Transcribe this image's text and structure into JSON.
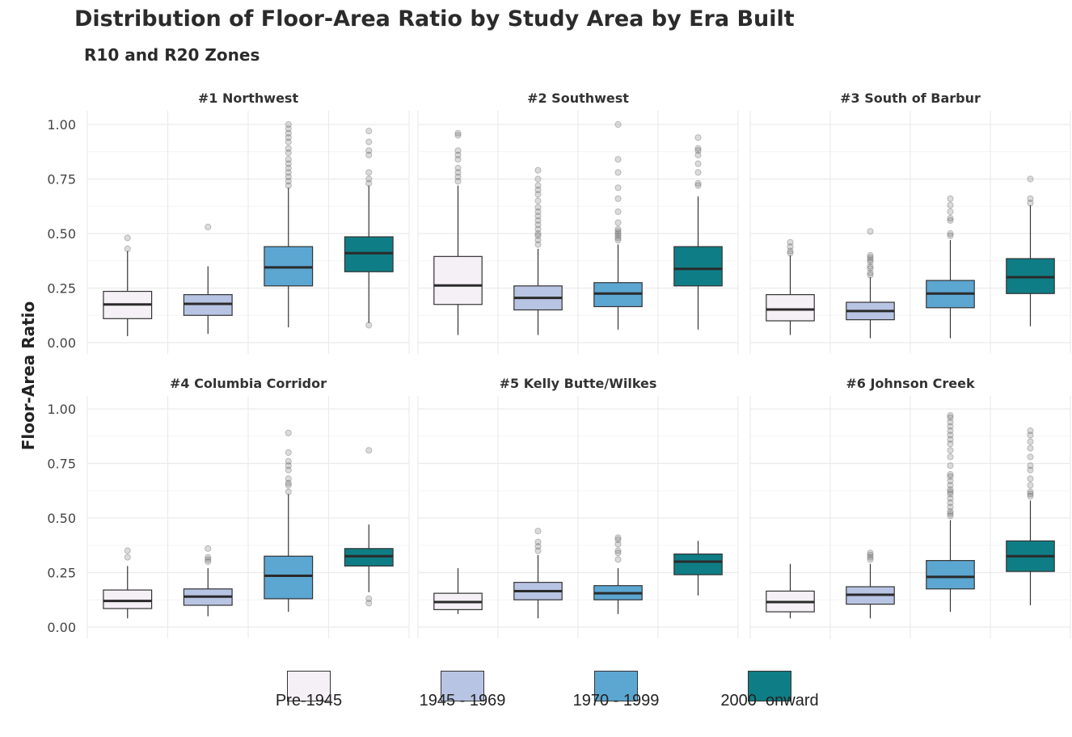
{
  "title": "Distribution of Floor-Area Ratio by Study Area by Era Built",
  "subtitle": "R10 and R20 Zones",
  "chart_data": {
    "type": "boxplot",
    "ylabel": "Floor-Area Ratio",
    "ylim": [
      0,
      1
    ],
    "yticks": [
      "0.00",
      "0.25",
      "0.50",
      "0.75",
      "1.00"
    ],
    "grid": true,
    "legend_position": "bottom",
    "categories": [
      "Pre-1945",
      "1945 - 1969",
      "1970 - 1999",
      "2000  onward"
    ],
    "colors": [
      "#f5eff6",
      "#b8c4e3",
      "#5ca6d2",
      "#0f7d85"
    ],
    "panels": [
      {
        "name": "#1 Northwest",
        "boxes": [
          {
            "whisker_low": 0.03,
            "q1": 0.11,
            "median": 0.175,
            "q3": 0.235,
            "whisker_high": 0.42,
            "outliers": [
              0.43,
              0.48
            ]
          },
          {
            "whisker_low": 0.04,
            "q1": 0.125,
            "median": 0.178,
            "q3": 0.22,
            "whisker_high": 0.35,
            "outliers": [
              0.53
            ]
          },
          {
            "whisker_low": 0.07,
            "q1": 0.26,
            "median": 0.345,
            "q3": 0.44,
            "whisker_high": 0.71,
            "outliers": [
              0.72,
              0.74,
              0.76,
              0.78,
              0.8,
              0.82,
              0.84,
              0.87,
              0.89,
              0.92,
              0.94,
              0.96,
              0.98,
              1.0
            ]
          },
          {
            "whisker_low": 0.09,
            "q1": 0.325,
            "median": 0.41,
            "q3": 0.485,
            "whisker_high": 0.72,
            "outliers": [
              0.08,
              0.73,
              0.75,
              0.78,
              0.86,
              0.88,
              0.92,
              0.97
            ]
          }
        ]
      },
      {
        "name": "#2 Southwest",
        "boxes": [
          {
            "whisker_low": 0.035,
            "q1": 0.175,
            "median": 0.262,
            "q3": 0.395,
            "whisker_high": 0.72,
            "outliers": [
              0.74,
              0.76,
              0.78,
              0.8,
              0.84,
              0.86,
              0.88,
              0.95,
              0.96
            ]
          },
          {
            "whisker_low": 0.035,
            "q1": 0.15,
            "median": 0.205,
            "q3": 0.26,
            "whisker_high": 0.43,
            "outliers": [
              0.45,
              0.47,
              0.49,
              0.5,
              0.52,
              0.54,
              0.56,
              0.58,
              0.6,
              0.62,
              0.65,
              0.68,
              0.7,
              0.72,
              0.75,
              0.79
            ]
          },
          {
            "whisker_low": 0.06,
            "q1": 0.165,
            "median": 0.225,
            "q3": 0.275,
            "whisker_high": 0.45,
            "outliers": [
              0.47,
              0.48,
              0.49,
              0.5,
              0.51,
              0.52,
              0.55,
              0.6,
              0.66,
              0.71,
              0.78,
              0.84,
              1.0
            ]
          },
          {
            "whisker_low": 0.06,
            "q1": 0.26,
            "median": 0.338,
            "q3": 0.44,
            "whisker_high": 0.67,
            "outliers": [
              0.72,
              0.73,
              0.78,
              0.82,
              0.86,
              0.88,
              0.89,
              0.94
            ]
          }
        ]
      },
      {
        "name": "#3 South of Barbur",
        "boxes": [
          {
            "whisker_low": 0.035,
            "q1": 0.1,
            "median": 0.152,
            "q3": 0.22,
            "whisker_high": 0.4,
            "outliers": [
              0.41,
              0.42,
              0.44,
              0.46
            ]
          },
          {
            "whisker_low": 0.02,
            "q1": 0.105,
            "median": 0.145,
            "q3": 0.185,
            "whisker_high": 0.3,
            "outliers": [
              0.31,
              0.32,
              0.34,
              0.35,
              0.37,
              0.38,
              0.39,
              0.4,
              0.51
            ]
          },
          {
            "whisker_low": 0.02,
            "q1": 0.16,
            "median": 0.225,
            "q3": 0.285,
            "whisker_high": 0.47,
            "outliers": [
              0.49,
              0.5,
              0.56,
              0.57,
              0.6,
              0.63,
              0.66
            ]
          },
          {
            "whisker_low": 0.075,
            "q1": 0.225,
            "median": 0.3,
            "q3": 0.385,
            "whisker_high": 0.63,
            "outliers": [
              0.64,
              0.66,
              0.75
            ]
          }
        ]
      },
      {
        "name": "#4 Columbia Corridor",
        "boxes": [
          {
            "whisker_low": 0.04,
            "q1": 0.085,
            "median": 0.12,
            "q3": 0.17,
            "whisker_high": 0.28,
            "outliers": [
              0.32,
              0.35
            ]
          },
          {
            "whisker_low": 0.05,
            "q1": 0.1,
            "median": 0.14,
            "q3": 0.175,
            "whisker_high": 0.27,
            "outliers": [
              0.3,
              0.31,
              0.32,
              0.36
            ]
          },
          {
            "whisker_low": 0.07,
            "q1": 0.13,
            "median": 0.235,
            "q3": 0.325,
            "whisker_high": 0.61,
            "outliers": [
              0.62,
              0.65,
              0.66,
              0.68,
              0.72,
              0.74,
              0.76,
              0.8,
              0.89
            ]
          },
          {
            "whisker_low": 0.16,
            "q1": 0.28,
            "median": 0.325,
            "q3": 0.36,
            "whisker_high": 0.47,
            "outliers": [
              0.11,
              0.13,
              0.81
            ]
          }
        ]
      },
      {
        "name": "#5 Kelly Butte/Wilkes",
        "boxes": [
          {
            "whisker_low": 0.06,
            "q1": 0.08,
            "median": 0.115,
            "q3": 0.155,
            "whisker_high": 0.27,
            "outliers": []
          },
          {
            "whisker_low": 0.04,
            "q1": 0.125,
            "median": 0.165,
            "q3": 0.205,
            "whisker_high": 0.33,
            "outliers": [
              0.35,
              0.37,
              0.39,
              0.44
            ]
          },
          {
            "whisker_low": 0.06,
            "q1": 0.125,
            "median": 0.155,
            "q3": 0.19,
            "whisker_high": 0.27,
            "outliers": [
              0.31,
              0.34,
              0.35,
              0.38,
              0.4,
              0.41
            ]
          },
          {
            "whisker_low": 0.145,
            "q1": 0.24,
            "median": 0.3,
            "q3": 0.335,
            "whisker_high": 0.395,
            "outliers": []
          }
        ]
      },
      {
        "name": "#6 Johnson Creek",
        "boxes": [
          {
            "whisker_low": 0.04,
            "q1": 0.07,
            "median": 0.115,
            "q3": 0.165,
            "whisker_high": 0.29,
            "outliers": []
          },
          {
            "whisker_low": 0.04,
            "q1": 0.105,
            "median": 0.148,
            "q3": 0.185,
            "whisker_high": 0.29,
            "outliers": [
              0.31,
              0.32,
              0.33,
              0.34
            ]
          },
          {
            "whisker_low": 0.07,
            "q1": 0.175,
            "median": 0.23,
            "q3": 0.305,
            "whisker_high": 0.49,
            "outliers": [
              0.51,
              0.52,
              0.53,
              0.55,
              0.57,
              0.59,
              0.61,
              0.62,
              0.63,
              0.65,
              0.67,
              0.69,
              0.7,
              0.74,
              0.78,
              0.81,
              0.84,
              0.86,
              0.88,
              0.9,
              0.92,
              0.94,
              0.96,
              0.97
            ]
          },
          {
            "whisker_low": 0.1,
            "q1": 0.255,
            "median": 0.325,
            "q3": 0.395,
            "whisker_high": 0.58,
            "outliers": [
              0.6,
              0.61,
              0.62,
              0.65,
              0.68,
              0.72,
              0.74,
              0.78,
              0.82,
              0.85,
              0.88,
              0.9
            ]
          }
        ]
      }
    ]
  },
  "legend": {
    "items": [
      {
        "label": "Pre-1945",
        "color": "#f5eff6"
      },
      {
        "label": "1945 - 1969",
        "color": "#b8c4e3"
      },
      {
        "label": "1970 - 1999",
        "color": "#5ca6d2"
      },
      {
        "label": "2000  onward",
        "color": "#0f7d85"
      }
    ]
  }
}
